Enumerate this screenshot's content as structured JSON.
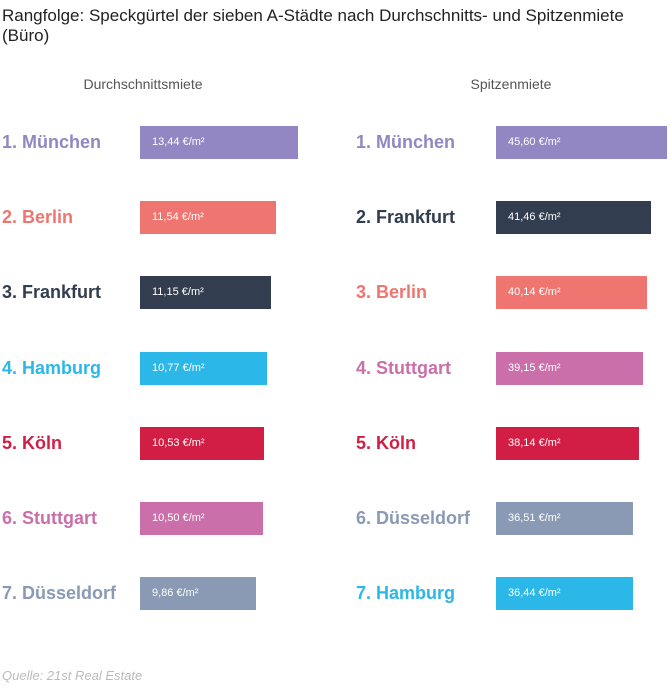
{
  "title": "Rangfolge: Speckgürtel der sieben A-Städte nach Durchschnitts- und Spitzenmiete (Büro)",
  "source": "Quelle: 21st Real Estate",
  "chart_data": [
    {
      "type": "bar",
      "title": "Durchschnittsmiete",
      "unit": "€/m²",
      "categories": [
        "1. München",
        "2. Berlin",
        "3. Frankfurt",
        "4. Hamburg",
        "5. Köln",
        "6. Stuttgart",
        "7. Düsseldorf"
      ],
      "values": [
        13.44,
        11.54,
        11.15,
        10.77,
        10.53,
        10.5,
        9.86
      ],
      "value_labels": [
        "13,44 €/m²",
        "11,54 €/m²",
        "11,15 €/m²",
        "10,77 €/m²",
        "10,53 €/m²",
        "10,50 €/m²",
        "9,86 €/m²"
      ],
      "colors": [
        "#9287c2",
        "#ef7570",
        "#323d4f",
        "#2bb7e8",
        "#d21e44",
        "#ca6fa9",
        "#8a9ab4"
      ]
    },
    {
      "type": "bar",
      "title": "Spitzenmiete",
      "unit": "€/m²",
      "categories": [
        "1. München",
        "2. Frankfurt",
        "3. Berlin",
        "4. Stuttgart",
        "5. Köln",
        "6. Düsseldorf",
        "7. Hamburg"
      ],
      "values": [
        45.6,
        41.46,
        40.14,
        39.15,
        38.14,
        36.51,
        36.44
      ],
      "value_labels": [
        "45,60 €/m²",
        "41,46 €/m²",
        "40,14 €/m²",
        "39,15 €/m²",
        "38,14 €/m²",
        "36,51 €/m²",
        "36,44 €/m²"
      ],
      "colors": [
        "#9287c2",
        "#323d4f",
        "#ef7570",
        "#ca6fa9",
        "#d21e44",
        "#8a9ab4",
        "#2bb7e8"
      ]
    }
  ]
}
